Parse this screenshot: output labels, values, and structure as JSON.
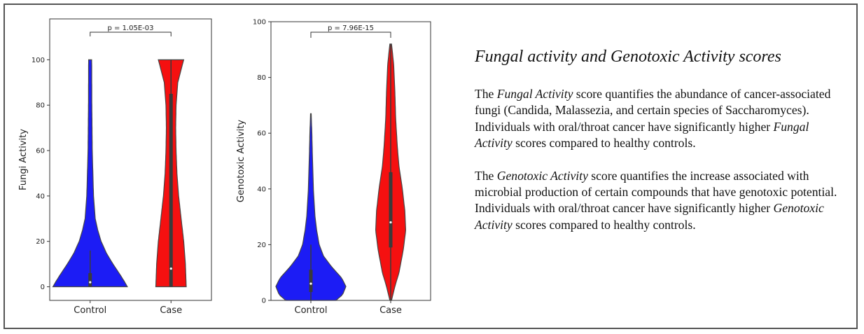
{
  "chart_data": [
    {
      "type": "violin",
      "ylabel": "Fungi Activity",
      "xlabel": "",
      "categories": [
        "Control",
        "Case"
      ],
      "ylim": [
        -6,
        118
      ],
      "yticks": [
        0,
        20,
        40,
        60,
        80,
        100
      ],
      "significance": "p = 1.05E-03",
      "colors": {
        "Control": "#1c1cf5",
        "Case": "#f51010"
      },
      "violins": [
        {
          "category": "Control",
          "median": 2,
          "q1": 0,
          "q3": 6,
          "whisker_low": 0,
          "whisker_high": 16,
          "profile": [
            [
              0,
              0.44
            ],
            [
              2,
              0.41
            ],
            [
              5,
              0.36
            ],
            [
              10,
              0.27
            ],
            [
              15,
              0.19
            ],
            [
              20,
              0.13
            ],
            [
              25,
              0.09
            ],
            [
              30,
              0.06
            ],
            [
              40,
              0.04
            ],
            [
              60,
              0.025
            ],
            [
              80,
              0.02
            ],
            [
              100,
              0.018
            ]
          ]
        },
        {
          "category": "Case",
          "median": 8,
          "q1": 0,
          "q3": 85,
          "whisker_low": 0,
          "whisker_high": 100,
          "profile": [
            [
              0,
              0.18
            ],
            [
              10,
              0.17
            ],
            [
              20,
              0.15
            ],
            [
              30,
              0.12
            ],
            [
              40,
              0.09
            ],
            [
              50,
              0.07
            ],
            [
              60,
              0.06
            ],
            [
              70,
              0.055
            ],
            [
              80,
              0.06
            ],
            [
              90,
              0.08
            ],
            [
              100,
              0.15
            ]
          ]
        }
      ]
    },
    {
      "type": "violin",
      "ylabel": "Genotoxic Activity",
      "xlabel": "",
      "categories": [
        "Control",
        "Case"
      ],
      "ylim": [
        0,
        100
      ],
      "yticks": [
        0,
        20,
        40,
        60,
        80,
        100
      ],
      "significance": "p = 7.96E-15",
      "colors": {
        "Control": "#1c1cf5",
        "Case": "#f51010"
      },
      "violins": [
        {
          "category": "Control",
          "median": 6,
          "q1": 3,
          "q3": 11,
          "whisker_low": 0,
          "whisker_high": 20,
          "profile": [
            [
              0,
              0.3
            ],
            [
              2,
              0.38
            ],
            [
              5,
              0.42
            ],
            [
              8,
              0.37
            ],
            [
              12,
              0.25
            ],
            [
              16,
              0.15
            ],
            [
              20,
              0.1
            ],
            [
              25,
              0.07
            ],
            [
              30,
              0.05
            ],
            [
              40,
              0.03
            ],
            [
              50,
              0.02
            ],
            [
              60,
              0.012
            ],
            [
              67,
              0.004
            ]
          ]
        },
        {
          "category": "Case",
          "median": 28,
          "q1": 19,
          "q3": 46,
          "whisker_low": 0,
          "whisker_high": 92,
          "profile": [
            [
              0,
              0.01
            ],
            [
              5,
              0.05
            ],
            [
              10,
              0.1
            ],
            [
              18,
              0.15
            ],
            [
              25,
              0.18
            ],
            [
              32,
              0.17
            ],
            [
              40,
              0.14
            ],
            [
              48,
              0.1
            ],
            [
              55,
              0.08
            ],
            [
              65,
              0.06
            ],
            [
              75,
              0.05
            ],
            [
              85,
              0.035
            ],
            [
              92,
              0.01
            ]
          ]
        }
      ]
    }
  ],
  "text_panel": {
    "heading": "Fungal activity and Genotoxic Activity scores",
    "p1_a": "The ",
    "p1_em1": "Fungal Activity",
    "p1_b": " score quantifies the abundance of cancer-associated fungi (Candida, Malassezia, and certain species of Saccharomyces).  Individuals with oral/throat cancer have significantly higher ",
    "p1_em2": "Fungal Activity",
    "p1_c": " scores compared to healthy controls.",
    "p2_a": "The ",
    "p2_em1": "Genotoxic Activity",
    "p2_b": " score quantifies the increase associated with microbial production of certain compounds that have genotoxic potential.  Individuals with oral/throat cancer have significantly higher ",
    "p2_em2": "Genotoxic Activity",
    "p2_c": " scores compared to healthy controls."
  }
}
